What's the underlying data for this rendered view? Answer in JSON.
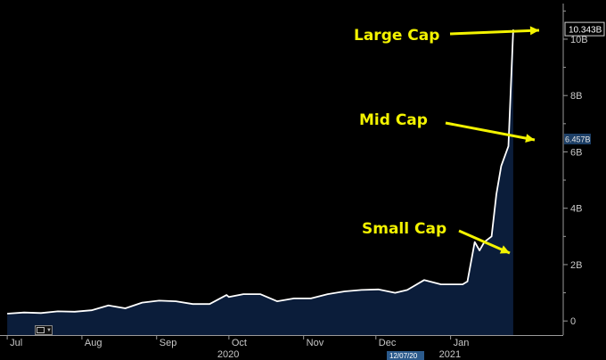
{
  "chart_data": {
    "type": "area",
    "title": "",
    "xlabel": "",
    "ylabel": "",
    "y_unit": "B",
    "ylim": [
      -0.5,
      11.2
    ],
    "y_ticks": [
      {
        "value": 0,
        "label": "0"
      },
      {
        "value": 2,
        "label": "2B"
      },
      {
        "value": 4,
        "label": "4B"
      },
      {
        "value": 6,
        "label": "6B"
      },
      {
        "value": 8,
        "label": "8B"
      },
      {
        "value": 10,
        "label": "10B"
      }
    ],
    "x_ticks": [
      {
        "date": "2020-07-01",
        "label": "Jul"
      },
      {
        "date": "2020-08-01",
        "label": "Aug"
      },
      {
        "date": "2020-09-01",
        "label": "Sep"
      },
      {
        "date": "2020-10-01",
        "label": "Oct"
      },
      {
        "date": "2020-11-01",
        "label": "Nov"
      },
      {
        "date": "2020-12-01",
        "label": "Dec"
      },
      {
        "date": "2021-01-01",
        "label": "Jan"
      }
    ],
    "year_labels": [
      {
        "date": "2020-10-01",
        "label": "2020"
      },
      {
        "date": "2021-01-01",
        "label": "2021"
      }
    ],
    "crosshair_label": "12/07/20",
    "last_value_label": "10.343B",
    "secondary_value_label": "6.457B",
    "secondary_value": 6.457,
    "series": [
      {
        "x": [
          "2020-07-01",
          "2020-07-08",
          "2020-07-15",
          "2020-07-22",
          "2020-07-29",
          "2020-08-05",
          "2020-08-12",
          "2020-08-19",
          "2020-08-26",
          "2020-09-02",
          "2020-09-09",
          "2020-09-16",
          "2020-09-23",
          "2020-09-30",
          "2020-10-01",
          "2020-10-07",
          "2020-10-14",
          "2020-10-21",
          "2020-10-28",
          "2020-11-04",
          "2020-11-11",
          "2020-11-18",
          "2020-11-25",
          "2020-12-02",
          "2020-12-09",
          "2020-12-14",
          "2020-12-21",
          "2020-12-28",
          "2021-01-04",
          "2021-01-06",
          "2021-01-08",
          "2021-01-11",
          "2021-01-13",
          "2021-01-15",
          "2021-01-18",
          "2021-01-20",
          "2021-01-22",
          "2021-01-25",
          "2021-01-27"
        ],
        "values": [
          0.26,
          0.3,
          0.28,
          0.34,
          0.33,
          0.38,
          0.55,
          0.45,
          0.65,
          0.72,
          0.7,
          0.6,
          0.6,
          0.92,
          0.85,
          0.95,
          0.95,
          0.7,
          0.8,
          0.8,
          0.95,
          1.05,
          1.1,
          1.12,
          1.0,
          1.1,
          1.45,
          1.3,
          1.3,
          1.3,
          1.4,
          2.8,
          2.5,
          2.8,
          3.0,
          4.5,
          5.5,
          6.2,
          10.343
        ]
      }
    ],
    "annotations": [
      {
        "text": "Large Cap",
        "date": "2021-01-27",
        "value": 10.343
      },
      {
        "text": "Mid Cap",
        "date": "2021-01-23",
        "value": 6.2
      },
      {
        "text": "Small Cap",
        "date": "2021-01-11",
        "value": 2.3
      }
    ],
    "colors": {
      "background": "#000000",
      "line": "#ffffff",
      "area": "#0b1d3a",
      "annotation": "#f3f300",
      "axis_text": "#c8c8c8",
      "crosshair_badge": "#2b5a8c"
    },
    "grid": false
  }
}
